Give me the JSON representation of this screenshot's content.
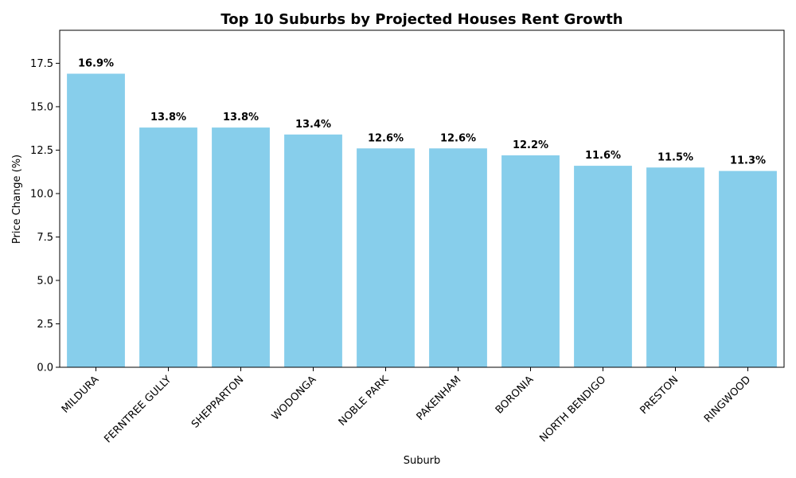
{
  "chart_data": {
    "type": "bar",
    "title": "Top 10 Suburbs by Projected Houses Rent Growth",
    "xlabel": "Suburb",
    "ylabel": "Price Change (%)",
    "categories": [
      "MILDURA",
      "FERNTREE GULLY",
      "SHEPPARTON",
      "WODONGA",
      "NOBLE PARK",
      "PAKENHAM",
      "BORONIA",
      "NORTH BENDIGO",
      "PRESTON",
      "RINGWOOD"
    ],
    "values": [
      16.9,
      13.8,
      13.8,
      13.4,
      12.6,
      12.6,
      12.2,
      11.6,
      11.5,
      11.3
    ],
    "data_labels": [
      "16.9%",
      "13.8%",
      "13.8%",
      "13.4%",
      "12.6%",
      "12.6%",
      "12.2%",
      "11.6%",
      "11.5%",
      "11.3%"
    ],
    "ylim": [
      0,
      19.4
    ],
    "yticks": [
      0,
      2.5,
      5,
      7.5,
      10,
      12.5,
      15,
      17.5
    ],
    "ytick_labels": [
      "0.0",
      "2.5",
      "5.0",
      "7.5",
      "10.0",
      "12.5",
      "15.0",
      "17.5"
    ],
    "grid": false,
    "bar_color": "#87CEEB",
    "x_tick_rotation": 45
  }
}
